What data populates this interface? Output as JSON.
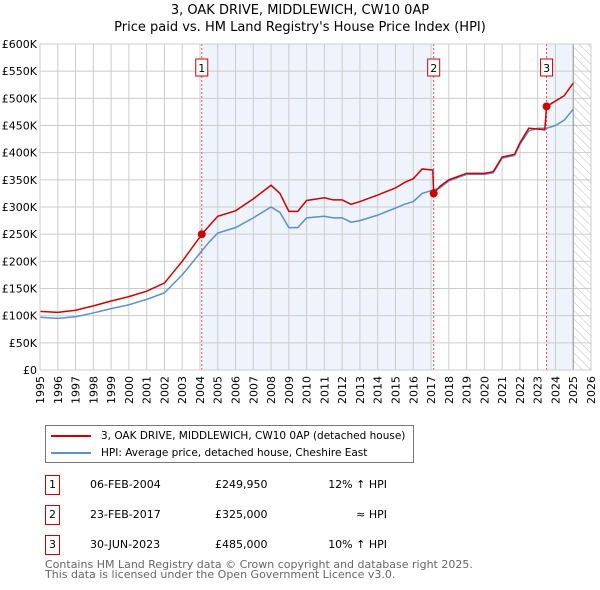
{
  "title": "3, OAK DRIVE, MIDDLEWICH, CW10 0AP",
  "subtitle": "Price paid vs. HM Land Registry's House Price Index (HPI)",
  "colors": {
    "property": "#cc0000",
    "hpi": "#5b8fd0",
    "shade": "#eef3fc"
  },
  "chart_data": {
    "type": "line",
    "xlim": [
      1995,
      2026
    ],
    "ylim": [
      0,
      600000
    ],
    "y_ticks": [
      {
        "v": 0,
        "label": "£0"
      },
      {
        "v": 50000,
        "label": "£50K"
      },
      {
        "v": 100000,
        "label": "£100K"
      },
      {
        "v": 150000,
        "label": "£150K"
      },
      {
        "v": 200000,
        "label": "£200K"
      },
      {
        "v": 250000,
        "label": "£250K"
      },
      {
        "v": 300000,
        "label": "£300K"
      },
      {
        "v": 350000,
        "label": "£350K"
      },
      {
        "v": 400000,
        "label": "£400K"
      },
      {
        "v": 450000,
        "label": "£450K"
      },
      {
        "v": 500000,
        "label": "£500K"
      },
      {
        "v": 550000,
        "label": "£550K"
      },
      {
        "v": 600000,
        "label": "£600K"
      }
    ],
    "x_ticks": [
      "1995",
      "1996",
      "1997",
      "1998",
      "1999",
      "2000",
      "2001",
      "2002",
      "2003",
      "2004",
      "2005",
      "2006",
      "2007",
      "2008",
      "2009",
      "2010",
      "2011",
      "2012",
      "2013",
      "2014",
      "2015",
      "2016",
      "2017",
      "2018",
      "2019",
      "2020",
      "2021",
      "2022",
      "2023",
      "2024",
      "2025",
      "2026"
    ],
    "shaded_ranges": [
      [
        2004.1,
        2017.15
      ],
      [
        2023.5,
        2025.0
      ]
    ],
    "hatched_from": 2025.0,
    "series": [
      {
        "name": "3, OAK DRIVE, MIDDLEWICH, CW10 0AP (detached house)",
        "key": "property",
        "points": [
          [
            1995,
            108000
          ],
          [
            1996,
            106000
          ],
          [
            1997,
            110000
          ],
          [
            1998,
            118000
          ],
          [
            1999,
            127000
          ],
          [
            2000,
            135000
          ],
          [
            2001,
            145000
          ],
          [
            2002,
            160000
          ],
          [
            2003,
            200000
          ],
          [
            2004,
            245000
          ],
          [
            2004.1,
            249950
          ],
          [
            2005,
            283000
          ],
          [
            2006,
            293000
          ],
          [
            2007,
            315000
          ],
          [
            2008,
            340000
          ],
          [
            2008.5,
            325000
          ],
          [
            2009,
            292000
          ],
          [
            2009.5,
            292000
          ],
          [
            2010,
            312000
          ],
          [
            2011,
            317000
          ],
          [
            2011.5,
            313000
          ],
          [
            2012,
            313000
          ],
          [
            2012.5,
            305000
          ],
          [
            2013,
            310000
          ],
          [
            2014,
            322000
          ],
          [
            2015,
            335000
          ],
          [
            2015.5,
            345000
          ],
          [
            2016,
            352000
          ],
          [
            2016.5,
            370000
          ],
          [
            2017.1,
            368000
          ],
          [
            2017.15,
            325000
          ],
          [
            2017.5,
            338000
          ],
          [
            2018,
            350000
          ],
          [
            2019,
            362000
          ],
          [
            2020,
            362000
          ],
          [
            2020.5,
            365000
          ],
          [
            2021,
            392000
          ],
          [
            2021.7,
            397000
          ],
          [
            2022,
            418000
          ],
          [
            2022.5,
            445000
          ],
          [
            2023.4,
            442000
          ],
          [
            2023.5,
            485000
          ],
          [
            2024,
            495000
          ],
          [
            2024.5,
            505000
          ],
          [
            2025,
            528000
          ]
        ]
      },
      {
        "name": "HPI: Average price, detached house, Cheshire East",
        "key": "hpi",
        "points": [
          [
            1995,
            97000
          ],
          [
            1996,
            95000
          ],
          [
            1997,
            98000
          ],
          [
            1998,
            105000
          ],
          [
            1999,
            113000
          ],
          [
            2000,
            120000
          ],
          [
            2001,
            130000
          ],
          [
            2002,
            142000
          ],
          [
            2003,
            175000
          ],
          [
            2004,
            215000
          ],
          [
            2004.5,
            235000
          ],
          [
            2005,
            252000
          ],
          [
            2006,
            262000
          ],
          [
            2007,
            280000
          ],
          [
            2008,
            300000
          ],
          [
            2008.5,
            290000
          ],
          [
            2009,
            262000
          ],
          [
            2009.5,
            262000
          ],
          [
            2010,
            280000
          ],
          [
            2011,
            283000
          ],
          [
            2011.5,
            280000
          ],
          [
            2012,
            280000
          ],
          [
            2012.5,
            272000
          ],
          [
            2013,
            275000
          ],
          [
            2014,
            285000
          ],
          [
            2015,
            298000
          ],
          [
            2015.5,
            305000
          ],
          [
            2016,
            310000
          ],
          [
            2016.5,
            325000
          ],
          [
            2017,
            330000
          ],
          [
            2017.5,
            335000
          ],
          [
            2018,
            348000
          ],
          [
            2019,
            360000
          ],
          [
            2020,
            360000
          ],
          [
            2020.5,
            363000
          ],
          [
            2021,
            390000
          ],
          [
            2021.7,
            395000
          ],
          [
            2022,
            415000
          ],
          [
            2022.5,
            440000
          ],
          [
            2023,
            445000
          ],
          [
            2023.5,
            445000
          ],
          [
            2024,
            450000
          ],
          [
            2024.5,
            460000
          ],
          [
            2025,
            480000
          ]
        ]
      }
    ],
    "sales": [
      {
        "id": "1",
        "x": 2004.1,
        "y": 249950
      },
      {
        "id": "2",
        "x": 2017.15,
        "y": 325000
      },
      {
        "id": "3",
        "x": 2023.5,
        "y": 485000
      }
    ]
  },
  "legend": {
    "property": "3, OAK DRIVE, MIDDLEWICH, CW10 0AP (detached house)",
    "hpi": "HPI: Average price, detached house, Cheshire East"
  },
  "table": [
    {
      "id": "1",
      "date": "06-FEB-2004",
      "price": "£249,950",
      "hpi": "12% ↑ HPI"
    },
    {
      "id": "2",
      "date": "23-FEB-2017",
      "price": "£325,000",
      "hpi": "≈ HPI"
    },
    {
      "id": "3",
      "date": "30-JUN-2023",
      "price": "£485,000",
      "hpi": "10% ↑ HPI"
    }
  ],
  "footer": {
    "line1": "Contains HM Land Registry data © Crown copyright and database right 2025.",
    "line2": "This data is licensed under the Open Government Licence v3.0."
  }
}
